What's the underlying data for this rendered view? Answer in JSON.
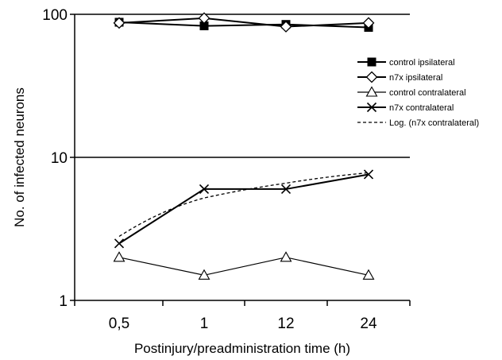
{
  "chart_data": {
    "type": "line",
    "xlabel": "Postinjury/preadministration time (h)",
    "ylabel": "No. of infected neurons",
    "categories": [
      "0,5",
      "1",
      "12",
      "24"
    ],
    "y_scale": "log",
    "ylim": [
      1,
      100
    ],
    "y_ticks": [
      "1",
      "10",
      "100"
    ],
    "grid": "horizontal major lines at 10 and 100",
    "legend_position": "right",
    "series": [
      {
        "name": "control ipsilateral",
        "marker": "filled-square",
        "line": "solid",
        "values": [
          88,
          83,
          85,
          81
        ]
      },
      {
        "name": "n7x ipsilateral",
        "marker": "open-diamond",
        "line": "solid",
        "values": [
          87,
          94,
          82,
          87
        ]
      },
      {
        "name": "control contralateral",
        "marker": "open-triangle",
        "line": "solid-thin",
        "values": [
          2.0,
          1.5,
          2.0,
          1.5
        ]
      },
      {
        "name": "n7x contralateral",
        "marker": "x",
        "line": "solid",
        "values": [
          2.5,
          6.0,
          6.0,
          7.6
        ]
      },
      {
        "name": "Log. (n7x contralateral)",
        "marker": "none",
        "line": "dashed",
        "values": [
          2.8,
          5.2,
          6.6,
          7.8
        ]
      }
    ],
    "colors": {
      "line": "#000000",
      "background": "#ffffff"
    }
  }
}
